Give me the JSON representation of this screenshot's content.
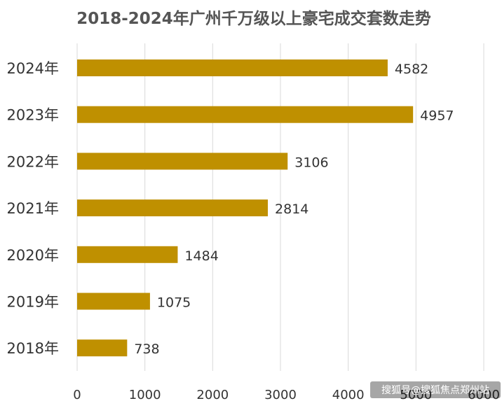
{
  "chart_data": {
    "type": "bar",
    "orientation": "horizontal",
    "title": "2018-2024年广州千万级以上豪宅成交套数走势",
    "categories": [
      "2024年",
      "2023年",
      "2022年",
      "2021年",
      "2020年",
      "2019年",
      "2018年"
    ],
    "values": [
      4582,
      4957,
      3106,
      2814,
      1484,
      1075,
      738
    ],
    "xlim": [
      0,
      6000
    ],
    "xticks": [
      0,
      1000,
      2000,
      3000,
      4000,
      5000,
      6000
    ],
    "grid": true,
    "bar_color": "#BF9000",
    "data_labels": true
  },
  "watermark": "搜狐号@搜狐焦点郑州站"
}
